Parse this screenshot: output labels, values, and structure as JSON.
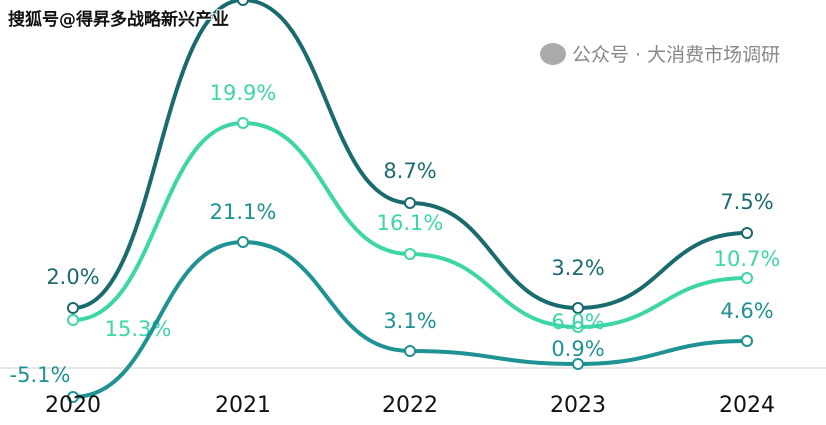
{
  "watermark_top": "搜狐号@得昇多战略新兴产业",
  "watermark_bottom": "公众号 · 大消费市场调研",
  "chart_data": {
    "type": "line",
    "categories": [
      "2020",
      "2021",
      "2022",
      "2023",
      "2024"
    ],
    "series": [
      {
        "color": "#1a6b6e",
        "values": [
          2.0,
          null,
          8.7,
          3.2,
          7.5
        ],
        "labels": [
          "2.0%",
          "",
          "8.7%",
          "3.2%",
          "7.5%"
        ]
      },
      {
        "color": "#3dd6a6",
        "values": [
          15.3,
          19.9,
          16.1,
          6.0,
          10.7
        ],
        "labels": [
          "15.3%",
          "19.9%",
          "16.1%",
          "6.0%",
          "10.7%"
        ]
      },
      {
        "color": "#1f9293",
        "values": [
          -5.1,
          21.1,
          3.1,
          0.9,
          4.6
        ],
        "labels": [
          "-5.1%",
          "21.1%",
          "3.1%",
          "0.9%",
          "4.6%"
        ]
      }
    ],
    "grid": false,
    "legend": "none"
  }
}
